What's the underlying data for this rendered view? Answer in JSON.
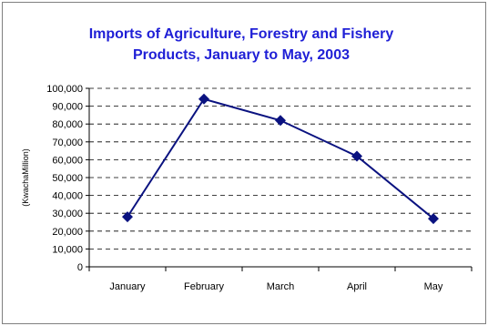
{
  "chart_data": {
    "type": "line",
    "title_lines": [
      "Imports of Agriculture, Forestry and Fishery",
      "Products, January to May, 2003"
    ],
    "ylabel": "(KwachaMillion)",
    "xlabel": "",
    "categories": [
      "January",
      "February",
      "March",
      "April",
      "May"
    ],
    "series": [
      {
        "values": [
          28000,
          94000,
          82000,
          62000,
          27000
        ]
      }
    ],
    "ylim": [
      0,
      100000
    ],
    "y_ticks": [
      0,
      10000,
      20000,
      30000,
      40000,
      50000,
      60000,
      70000,
      80000,
      90000,
      100000
    ],
    "y_tick_labels": [
      "0",
      "10,000",
      "20,000",
      "30,000",
      "40,000",
      "50,000",
      "60,000",
      "70,000",
      "80,000",
      "90,000",
      "100,000"
    ],
    "grid": "horizontal-dashed",
    "legend": "none",
    "colors": {
      "title": "#1f1fd6",
      "line": "#0a1280",
      "marker": "#0a1280"
    }
  }
}
